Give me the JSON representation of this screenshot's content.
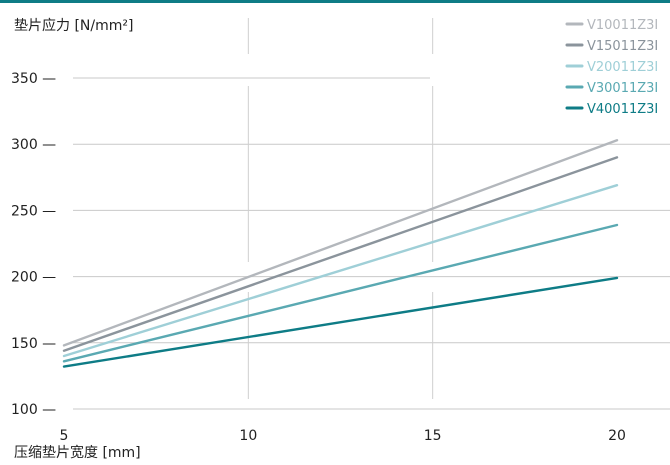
{
  "chart_data": {
    "type": "line",
    "xlabel": "压缩垫片宽度 [mm]",
    "ylabel": "垫片应力 [N/mm²]",
    "xlim": [
      5,
      20
    ],
    "ylim": [
      100,
      350
    ],
    "xticks": [
      "5",
      "10",
      "15",
      "20"
    ],
    "yticks": [
      "350",
      "300",
      "250",
      "200",
      "150",
      "100"
    ],
    "x": [
      5,
      20
    ],
    "series": [
      {
        "name": "V10011Z3I",
        "color": "#b3b7bc",
        "values": [
          148,
          303
        ]
      },
      {
        "name": "V15011Z3I",
        "color": "#8b949c",
        "values": [
          144,
          290
        ]
      },
      {
        "name": "V20011Z3I",
        "color": "#9fcfd7",
        "values": [
          140,
          269
        ]
      },
      {
        "name": "V30011Z3I",
        "color": "#5aa9b2",
        "values": [
          136,
          239
        ]
      },
      {
        "name": "V40011Z3I",
        "color": "#0e7c86",
        "values": [
          132,
          199
        ]
      }
    ],
    "legend_position": "top-right",
    "grid": true
  }
}
